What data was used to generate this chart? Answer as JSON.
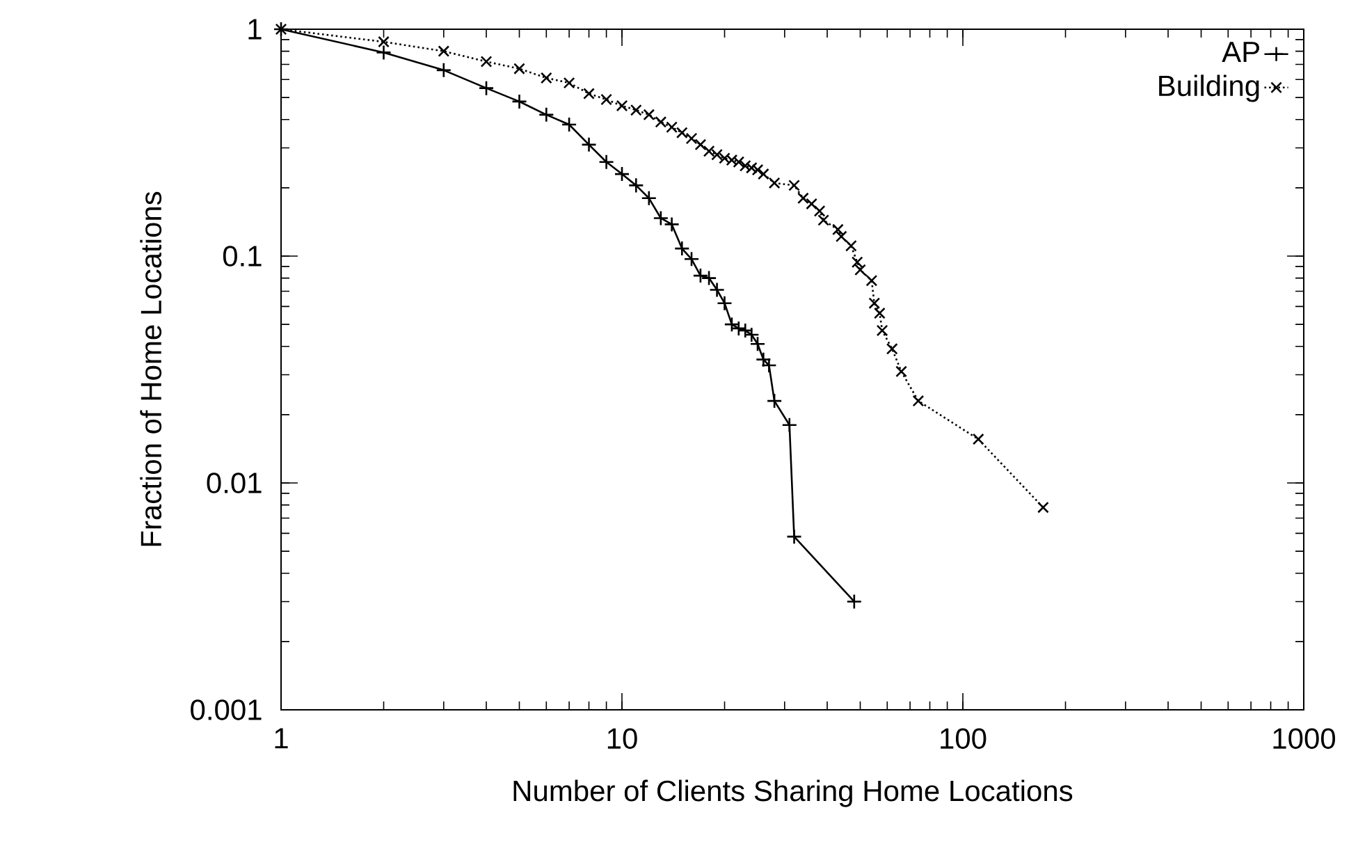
{
  "chart_data": {
    "type": "line",
    "xlabel": "Number of Clients Sharing Home Locations",
    "ylabel": "Fraction of Home Locations",
    "log": "xy",
    "xlim": [
      1,
      1000
    ],
    "ylim": [
      0.001,
      1
    ],
    "xticks": [
      1,
      10,
      100,
      1000
    ],
    "yticks": [
      0.001,
      0.01,
      0.1,
      1
    ],
    "legend": "top right",
    "series": [
      {
        "name": "AP",
        "color": "#000000",
        "marker": "plus",
        "line_style": "solid",
        "x": [
          1,
          2,
          3,
          4,
          5,
          6,
          7,
          8,
          9,
          10,
          11,
          12,
          13,
          14,
          15,
          16,
          17,
          18,
          19,
          20,
          21,
          22,
          23,
          24,
          25,
          26,
          27,
          28,
          31,
          32,
          48
        ],
        "values": [
          1,
          0.79,
          0.66,
          0.55,
          0.48,
          0.42,
          0.38,
          0.31,
          0.26,
          0.23,
          0.205,
          0.18,
          0.147,
          0.138,
          0.108,
          0.097,
          0.082,
          0.08,
          0.071,
          0.062,
          0.05,
          0.048,
          0.047,
          0.045,
          0.041,
          0.035,
          0.033,
          0.023,
          0.018,
          0.0058,
          0.003
        ]
      },
      {
        "name": "Building",
        "color": "#000000",
        "marker": "cross",
        "line_style": "dotted",
        "x": [
          1,
          2,
          3,
          4,
          5,
          6,
          7,
          8,
          9,
          10,
          11,
          12,
          13,
          14,
          15,
          16,
          17,
          18,
          19,
          20,
          21,
          22,
          23,
          24,
          25,
          26,
          28,
          32,
          34,
          36,
          38,
          39,
          43,
          44,
          47,
          49,
          50,
          54,
          55,
          57,
          58,
          62,
          66,
          74,
          111,
          172
        ],
        "values": [
          1,
          0.88,
          0.8,
          0.72,
          0.67,
          0.61,
          0.58,
          0.52,
          0.49,
          0.46,
          0.44,
          0.42,
          0.39,
          0.37,
          0.35,
          0.33,
          0.31,
          0.29,
          0.28,
          0.27,
          0.265,
          0.26,
          0.25,
          0.245,
          0.24,
          0.23,
          0.21,
          0.205,
          0.18,
          0.17,
          0.158,
          0.144,
          0.131,
          0.122,
          0.111,
          0.094,
          0.087,
          0.078,
          0.062,
          0.056,
          0.047,
          0.039,
          0.031,
          0.023,
          0.0156,
          0.0078
        ]
      }
    ]
  }
}
